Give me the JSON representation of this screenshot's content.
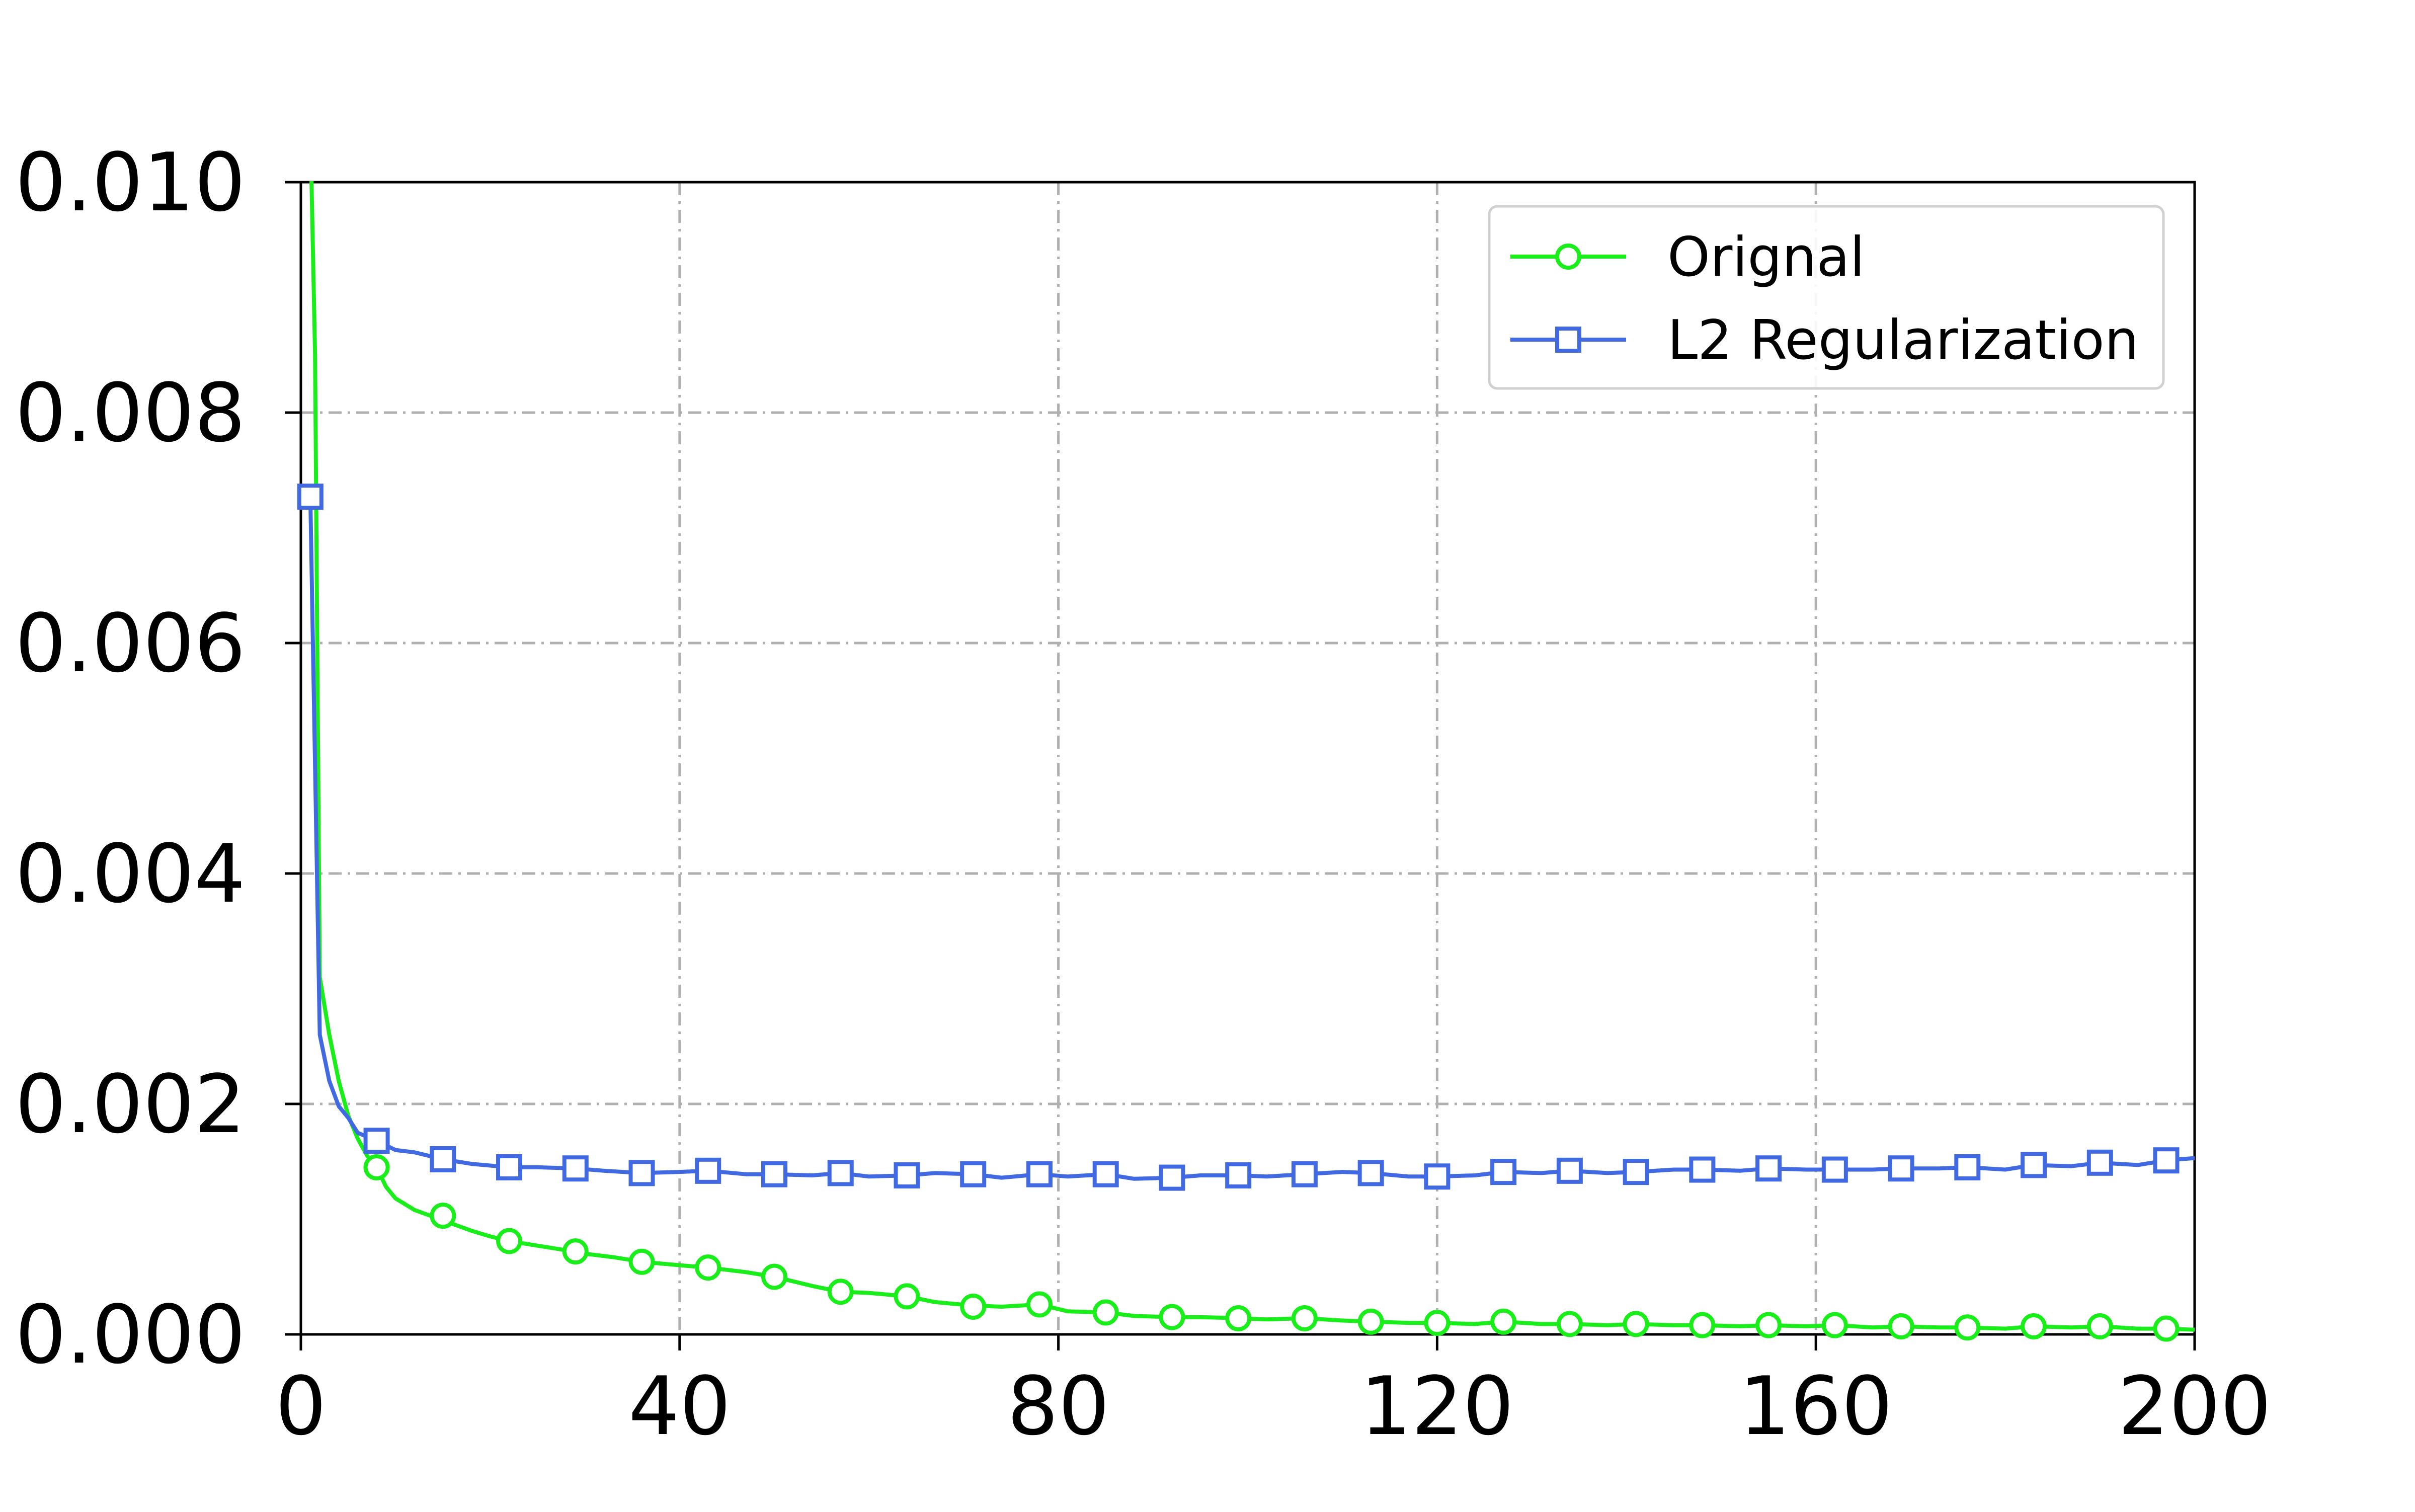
{
  "chart_data": {
    "type": "line",
    "title": "",
    "xlabel": "",
    "ylabel": "",
    "xlim": [
      0,
      200
    ],
    "ylim": [
      0.0,
      0.01
    ],
    "x_ticks": [
      0,
      40,
      80,
      120,
      160,
      200
    ],
    "x_tick_labels": [
      "0",
      "40",
      "80",
      "120",
      "160",
      "200"
    ],
    "y_ticks": [
      0.0,
      0.002,
      0.004,
      0.006,
      0.008,
      0.01
    ],
    "y_tick_labels": [
      "0.000",
      "0.002",
      "0.004",
      "0.006",
      "0.008",
      "0.010"
    ],
    "grid": true,
    "grid_style": "dash-dot",
    "legend_position": "top-right",
    "series": [
      {
        "name": "Orignal",
        "color": "#1aee1a",
        "marker": "circle",
        "line_x": [
          1,
          1.5,
          2,
          3,
          4,
          5,
          6,
          7,
          8,
          9,
          10,
          12,
          14,
          16,
          18,
          20,
          22,
          25,
          28,
          30,
          33,
          36,
          40,
          43,
          47,
          50,
          54,
          57,
          60,
          64,
          67,
          71,
          74,
          78,
          81,
          85,
          88,
          92,
          95,
          99,
          102,
          106,
          110,
          113,
          117,
          120,
          124,
          127,
          131,
          134,
          138,
          141,
          145,
          148,
          152,
          155,
          159,
          162,
          166,
          169,
          173,
          176,
          180,
          183,
          187,
          190,
          194,
          197,
          200
        ],
        "line_y": [
          0.0105,
          0.0085,
          0.0031,
          0.0026,
          0.0022,
          0.0019,
          0.0017,
          0.00155,
          0.00145,
          0.00128,
          0.00118,
          0.00108,
          0.00102,
          0.00096,
          0.0009,
          0.00085,
          0.00081,
          0.00077,
          0.00073,
          0.0007,
          0.00067,
          0.00063,
          0.0006,
          0.00058,
          0.00054,
          0.0005,
          0.00042,
          0.00037,
          0.00036,
          0.00033,
          0.00028,
          0.00025,
          0.00024,
          0.00026,
          0.0002,
          0.00019,
          0.00016,
          0.00015,
          0.00015,
          0.00014,
          0.00013,
          0.00014,
          0.00012,
          0.00011,
          0.0001,
          0.0001,
          9e-05,
          0.00011,
          9e-05,
          9e-05,
          8e-05,
          9e-05,
          8e-05,
          8e-05,
          7e-05,
          8e-05,
          7e-05,
          8e-05,
          6e-05,
          7e-05,
          6e-05,
          6e-05,
          5e-05,
          7e-05,
          6e-05,
          7e-05,
          5e-05,
          5e-05,
          4e-05
        ],
        "marker_x": [
          8,
          15,
          22,
          29,
          36,
          43,
          50,
          57,
          64,
          71,
          78,
          85,
          92,
          99,
          106,
          113,
          120,
          127,
          134,
          141,
          148,
          155,
          162,
          169,
          176,
          183,
          190,
          197
        ],
        "marker_y": [
          0.00145,
          0.00103,
          0.00081,
          0.00072,
          0.00063,
          0.00058,
          0.0005,
          0.00037,
          0.00033,
          0.00024,
          0.00026,
          0.00019,
          0.00015,
          0.00014,
          0.00014,
          0.00011,
          0.0001,
          0.00011,
          9e-05,
          9e-05,
          8e-05,
          8e-05,
          8e-05,
          7e-05,
          6e-05,
          7e-05,
          7e-05,
          5e-05
        ]
      },
      {
        "name": "L2 Regularization",
        "color": "#4169e1",
        "marker": "square",
        "line_x": [
          1,
          2,
          3,
          4,
          5,
          6,
          8,
          10,
          12,
          15,
          18,
          22,
          25,
          29,
          32,
          36,
          40,
          43,
          47,
          50,
          54,
          57,
          60,
          64,
          67,
          71,
          74,
          78,
          81,
          85,
          88,
          92,
          95,
          99,
          102,
          106,
          110,
          113,
          117,
          120,
          124,
          127,
          131,
          134,
          138,
          141,
          145,
          148,
          152,
          155,
          159,
          162,
          166,
          169,
          173,
          176,
          180,
          183,
          187,
          190,
          194,
          197,
          200
        ],
        "line_y": [
          0.00727,
          0.0026,
          0.0022,
          0.00198,
          0.00188,
          0.00175,
          0.00168,
          0.0016,
          0.00158,
          0.00152,
          0.00148,
          0.00145,
          0.00145,
          0.00144,
          0.00142,
          0.0014,
          0.00141,
          0.00142,
          0.00139,
          0.00139,
          0.00138,
          0.0014,
          0.00137,
          0.00138,
          0.0014,
          0.00139,
          0.00136,
          0.00139,
          0.00137,
          0.00139,
          0.00135,
          0.00136,
          0.00138,
          0.00138,
          0.00137,
          0.00139,
          0.00141,
          0.0014,
          0.00137,
          0.00137,
          0.00138,
          0.00141,
          0.0014,
          0.00142,
          0.0014,
          0.00141,
          0.00143,
          0.00143,
          0.00142,
          0.00144,
          0.00143,
          0.00143,
          0.00143,
          0.00144,
          0.00144,
          0.00145,
          0.00143,
          0.00147,
          0.00146,
          0.00149,
          0.00147,
          0.00151,
          0.00153
        ],
        "marker_x": [
          1,
          8,
          15,
          22,
          29,
          36,
          43,
          50,
          57,
          64,
          71,
          78,
          85,
          92,
          99,
          106,
          113,
          120,
          127,
          134,
          141,
          148,
          155,
          162,
          169,
          176,
          183,
          190,
          197
        ],
        "marker_y": [
          0.00727,
          0.00168,
          0.00152,
          0.00145,
          0.00144,
          0.0014,
          0.00142,
          0.00139,
          0.0014,
          0.00138,
          0.00139,
          0.00139,
          0.00139,
          0.00136,
          0.00138,
          0.00139,
          0.0014,
          0.00137,
          0.00141,
          0.00142,
          0.00141,
          0.00143,
          0.00144,
          0.00143,
          0.00144,
          0.00145,
          0.00147,
          0.00149,
          0.00151
        ]
      }
    ]
  }
}
